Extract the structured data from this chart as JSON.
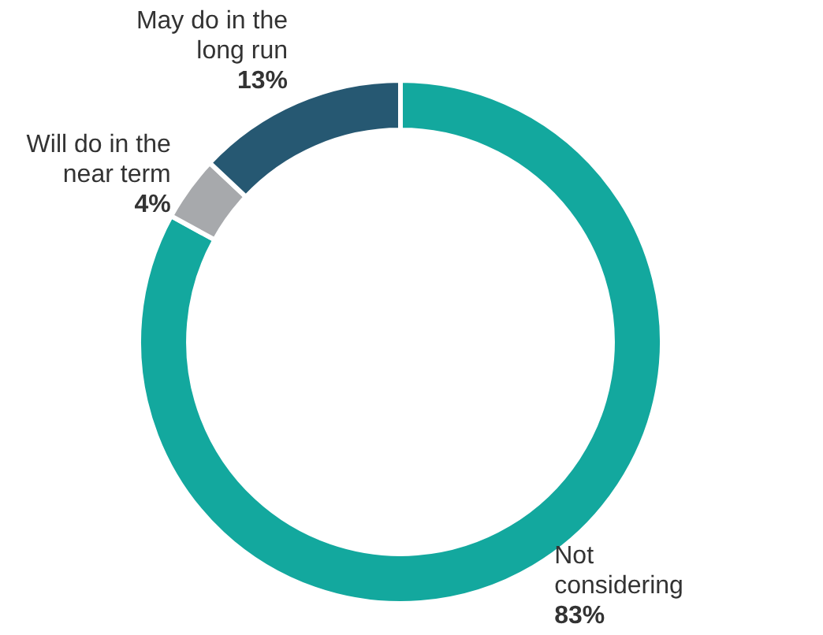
{
  "chart_data": {
    "type": "donut",
    "categories": [
      "Not considering",
      "Will do in the near term",
      "May do in the long run"
    ],
    "values": [
      83,
      4,
      13
    ],
    "colors": [
      "#13a89e",
      "#a7a9ac",
      "#265872"
    ],
    "value_labels": [
      "83%",
      "4%",
      "13%"
    ]
  }
}
